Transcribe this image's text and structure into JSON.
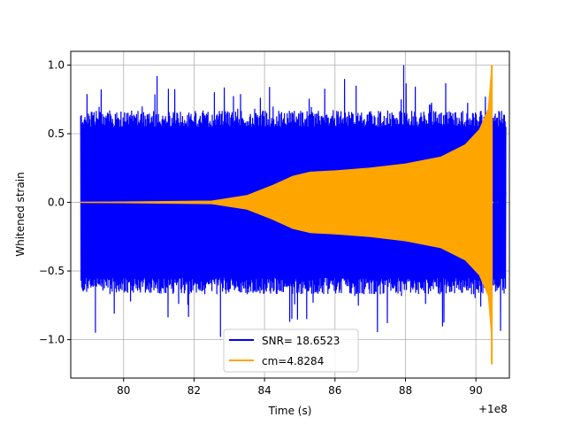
{
  "chart_data": {
    "type": "line",
    "xlabel": "Time (s)",
    "ylabel": "Whitened strain",
    "x_offset_label": "+1e8",
    "xlim": [
      78.5,
      90.95
    ],
    "ylim": [
      -1.28,
      1.1
    ],
    "xticks": [
      80,
      82,
      84,
      86,
      88,
      90
    ],
    "yticks": [
      -1.0,
      -0.5,
      0.0,
      0.5,
      1.0
    ],
    "xtick_labels": [
      "80",
      "82",
      "84",
      "86",
      "88",
      "90"
    ],
    "ytick_labels": [
      "−1.0",
      "−0.5",
      "0.0",
      "0.5",
      "1.0"
    ],
    "grid": true,
    "legend_position": "lower center",
    "series": [
      {
        "name": "SNR= 18.6523",
        "color": "#0000ff",
        "kind": "whitened noise",
        "x_range": [
          78.78,
          90.85
        ],
        "typical_abs": 0.55,
        "peak_max": 1.0,
        "peak_min": -0.98,
        "dip_x": 90.45,
        "dip_value": -0.98
      },
      {
        "name": "cm=4.8284",
        "color": "#ffa500",
        "kind": "chirp template envelope",
        "x_range": [
          78.78,
          90.85
        ],
        "envelope": [
          {
            "x": 78.78,
            "y": 0.0
          },
          {
            "x": 82.5,
            "y": 0.01
          },
          {
            "x": 83.5,
            "y": 0.05
          },
          {
            "x": 84.2,
            "y": 0.12
          },
          {
            "x": 84.8,
            "y": 0.19
          },
          {
            "x": 85.3,
            "y": 0.22
          },
          {
            "x": 86.0,
            "y": 0.23
          },
          {
            "x": 87.0,
            "y": 0.25
          },
          {
            "x": 88.0,
            "y": 0.28
          },
          {
            "x": 89.0,
            "y": 0.33
          },
          {
            "x": 89.7,
            "y": 0.42
          },
          {
            "x": 90.1,
            "y": 0.53
          },
          {
            "x": 90.35,
            "y": 0.68
          },
          {
            "x": 90.45,
            "y": 1.0
          }
        ],
        "merger_x": 90.45,
        "merger_max": 1.0,
        "merger_min": -1.18
      }
    ]
  }
}
